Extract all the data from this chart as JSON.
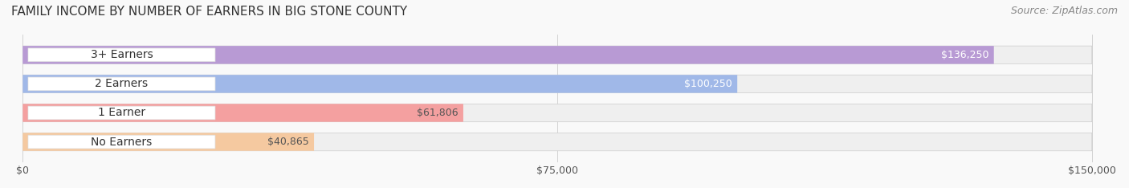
{
  "title": "FAMILY INCOME BY NUMBER OF EARNERS IN BIG STONE COUNTY",
  "source": "Source: ZipAtlas.com",
  "categories": [
    "No Earners",
    "1 Earner",
    "2 Earners",
    "3+ Earners"
  ],
  "values": [
    40865,
    61806,
    100250,
    136250
  ],
  "value_labels": [
    "$40,865",
    "$61,806",
    "$100,250",
    "$136,250"
  ],
  "bar_colors": [
    "#f5c9a0",
    "#f4a0a0",
    "#a0b8e8",
    "#b89ad4"
  ],
  "bar_bg_color": "#efefef",
  "bar_label_colors": [
    "#555555",
    "#555555",
    "#ffffff",
    "#ffffff"
  ],
  "x_max": 150000,
  "x_ticks": [
    0,
    75000,
    150000
  ],
  "x_tick_labels": [
    "$0",
    "$75,000",
    "$150,000"
  ],
  "background_color": "#f9f9f9",
  "title_fontsize": 11,
  "source_fontsize": 9,
  "label_fontsize": 10,
  "value_fontsize": 9,
  "tick_fontsize": 9
}
